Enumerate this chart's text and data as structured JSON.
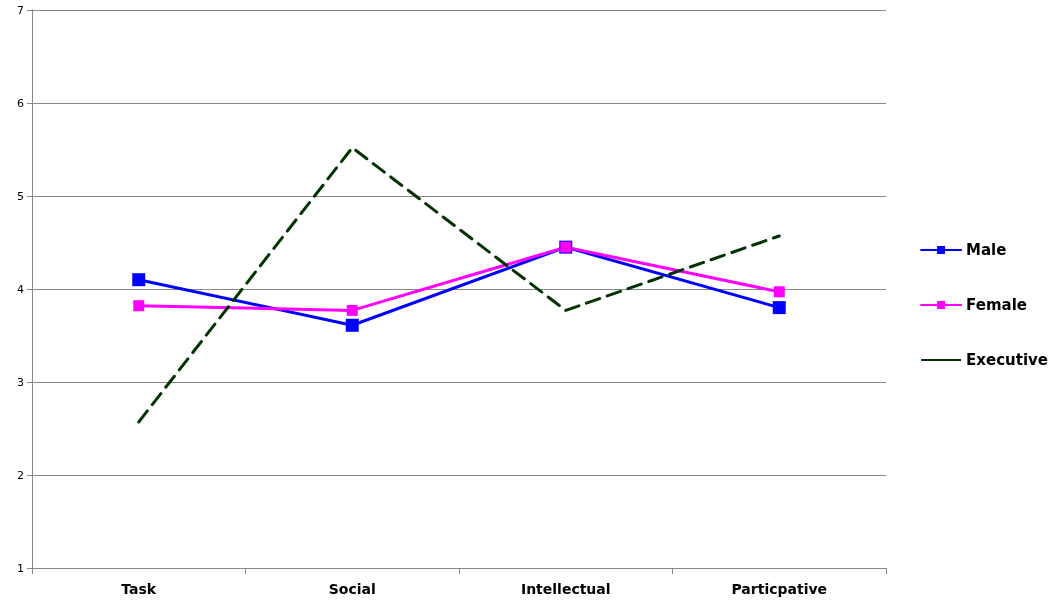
{
  "chart_data": {
    "type": "line",
    "categories": [
      "Task",
      "Social",
      "Intellectual",
      "Particpative"
    ],
    "series": [
      {
        "name": "Male",
        "color": "#0000ff",
        "values": [
          4.1,
          3.61,
          4.45,
          3.8
        ],
        "marker": "square",
        "line_style": "solid"
      },
      {
        "name": "Female",
        "color": "#ff00ff",
        "values": [
          3.82,
          3.77,
          4.45,
          3.97
        ],
        "marker": "square",
        "line_style": "solid"
      },
      {
        "name": "Executive",
        "color": "#003300",
        "values": [
          2.57,
          5.52,
          3.77,
          4.57
        ],
        "marker": "none",
        "line_style": "dashed"
      }
    ],
    "ylim": [
      1,
      7
    ],
    "yticks": [
      1,
      2,
      3,
      4,
      5,
      6,
      7
    ],
    "grid": "y",
    "legend": "right"
  }
}
